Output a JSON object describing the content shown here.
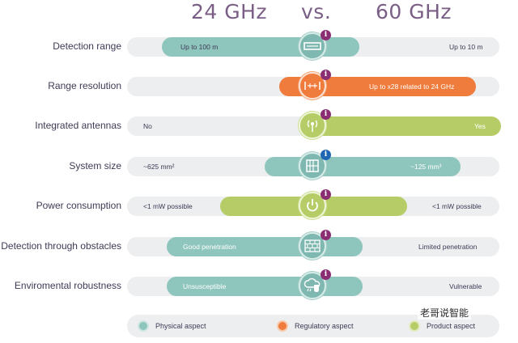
{
  "header": {
    "left": "24 GHz",
    "middle": "vs.",
    "right": "60 GHz"
  },
  "rows": [
    {
      "label": "Detection range",
      "left": "Up to 100 m",
      "right": "Up to 10 m",
      "icon": "ruler-icon",
      "badge": "i"
    },
    {
      "label": "Range resolution",
      "left": "",
      "right": "Up to x28 related to 24 GHz",
      "icon": "resolution-icon",
      "badge": "i"
    },
    {
      "label": "Integrated antennas",
      "left": "No",
      "right": "Yes",
      "icon": "antenna-icon",
      "badge": "i"
    },
    {
      "label": "System size",
      "left": "~625 mm²",
      "right": "~125 mm³",
      "icon": "chip-icon",
      "badge": "i"
    },
    {
      "label": "Power consumption",
      "left": "<1 mW possible",
      "right": "<1 mW possible",
      "icon": "power-icon",
      "badge": "i"
    },
    {
      "label": "Detection through obstacles",
      "left": "Good penetration",
      "right": "Limited penetration",
      "icon": "wall-icon",
      "badge": "i"
    },
    {
      "label": "Enviromental robustness",
      "left": "Unsusceptible",
      "right": "Vulnerable",
      "icon": "weather-icon",
      "badge": "i"
    }
  ],
  "legend": [
    {
      "label": "Physical aspect",
      "color": "#8ec5bd"
    },
    {
      "label": "Regulatory aspect",
      "color": "#ef7c3c"
    },
    {
      "label": "Product aspect",
      "color": "#b6cd67"
    }
  ],
  "watermark": "老哥说智能"
}
